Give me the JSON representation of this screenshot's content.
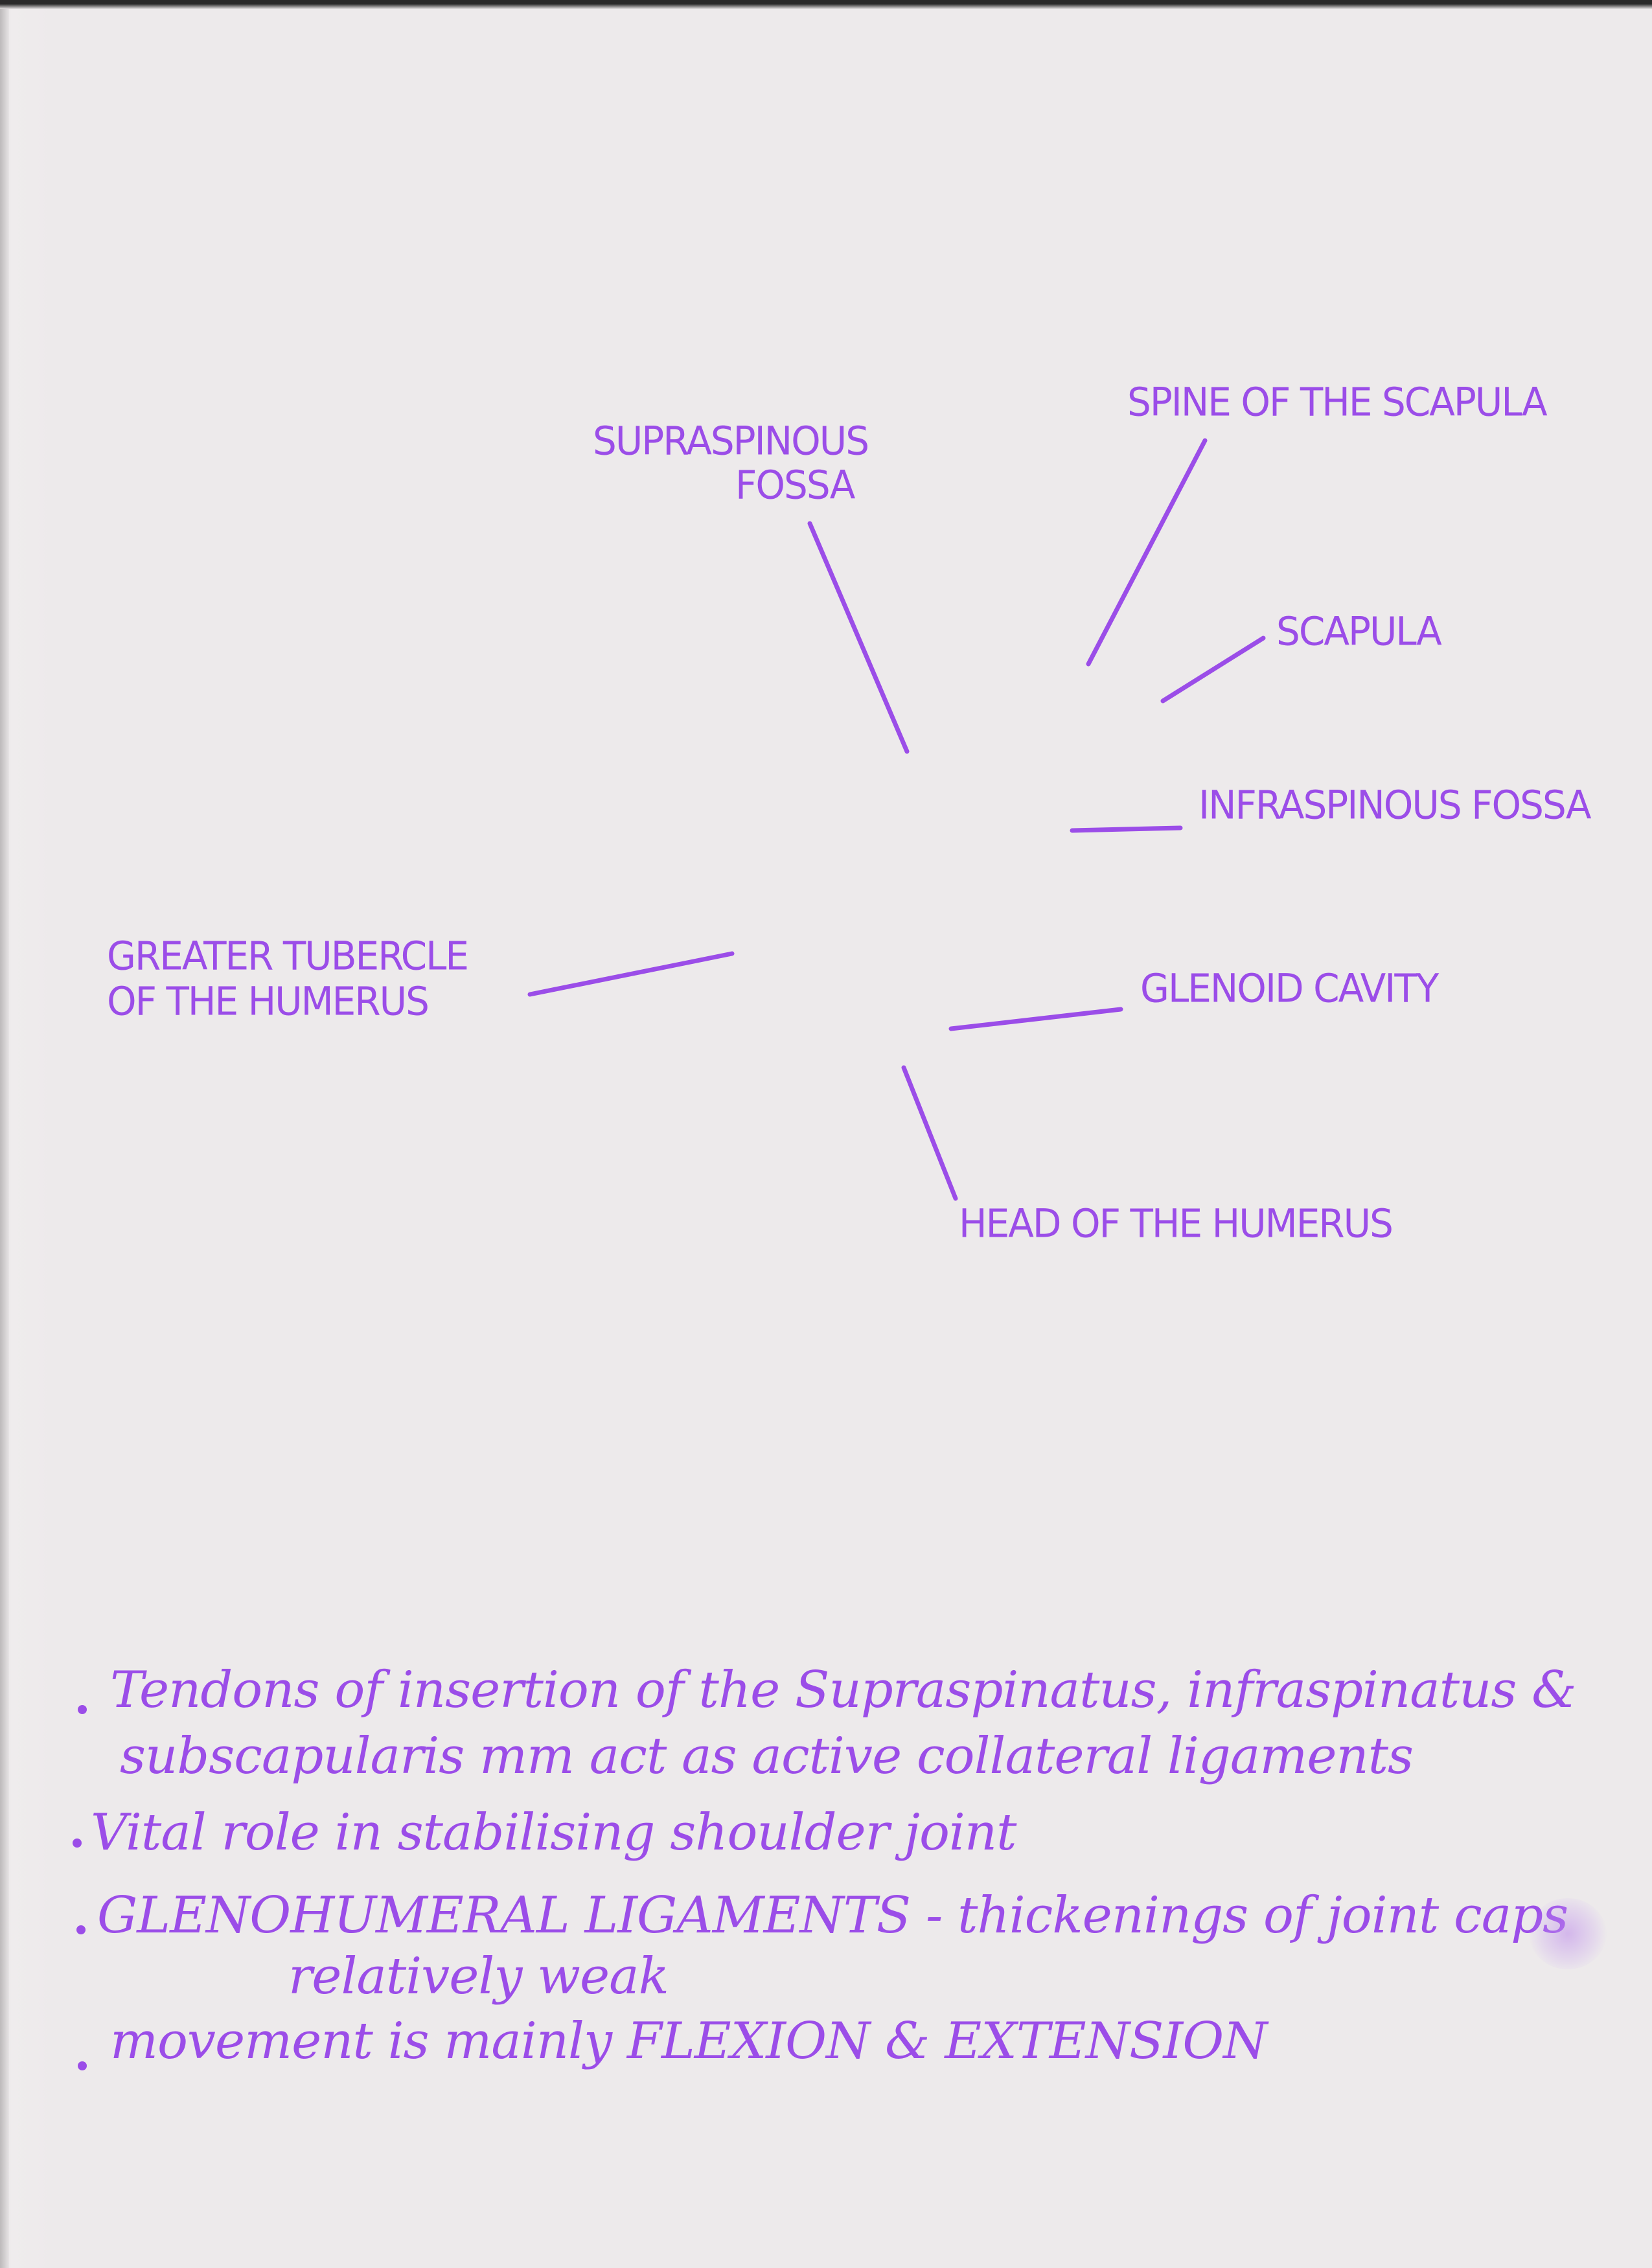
{
  "diagram": {
    "labels": {
      "supraspinous_fossa_line1": "SUPRASPINOUS",
      "supraspinous_fossa_line2": "FOSSA",
      "spine_of_scapula": "SPINE OF THE SCAPULA",
      "scapula": "SCAPULA",
      "infraspinous_fossa": "INFRASPINOUS FOSSA",
      "greater_tubercle_line1": "GREATER TUBERCLE",
      "greater_tubercle_line2": "OF THE HUMERUS",
      "glenoid_cavity": "GLENOID CAVITY",
      "head_of_humerus": "HEAD OF THE HUMERUS"
    }
  },
  "notes": {
    "bullet1_line1": "Tendons of insertion of the Supraspinatus, infraspinatus &",
    "bullet1_line2": "subscapularis mm act as active collateral ligaments",
    "bullet2": "Vital role in stabilising shoulder joint",
    "bullet3_line1": "GLENOHUMERAL LIGAMENTS - thickenings of joint caps",
    "bullet3_line2": "relatively weak",
    "bullet4": "movement is mainly FLEXION & EXTENSION"
  },
  "colors": {
    "ink": "#9b4de8",
    "paper": "#edeaeb"
  }
}
